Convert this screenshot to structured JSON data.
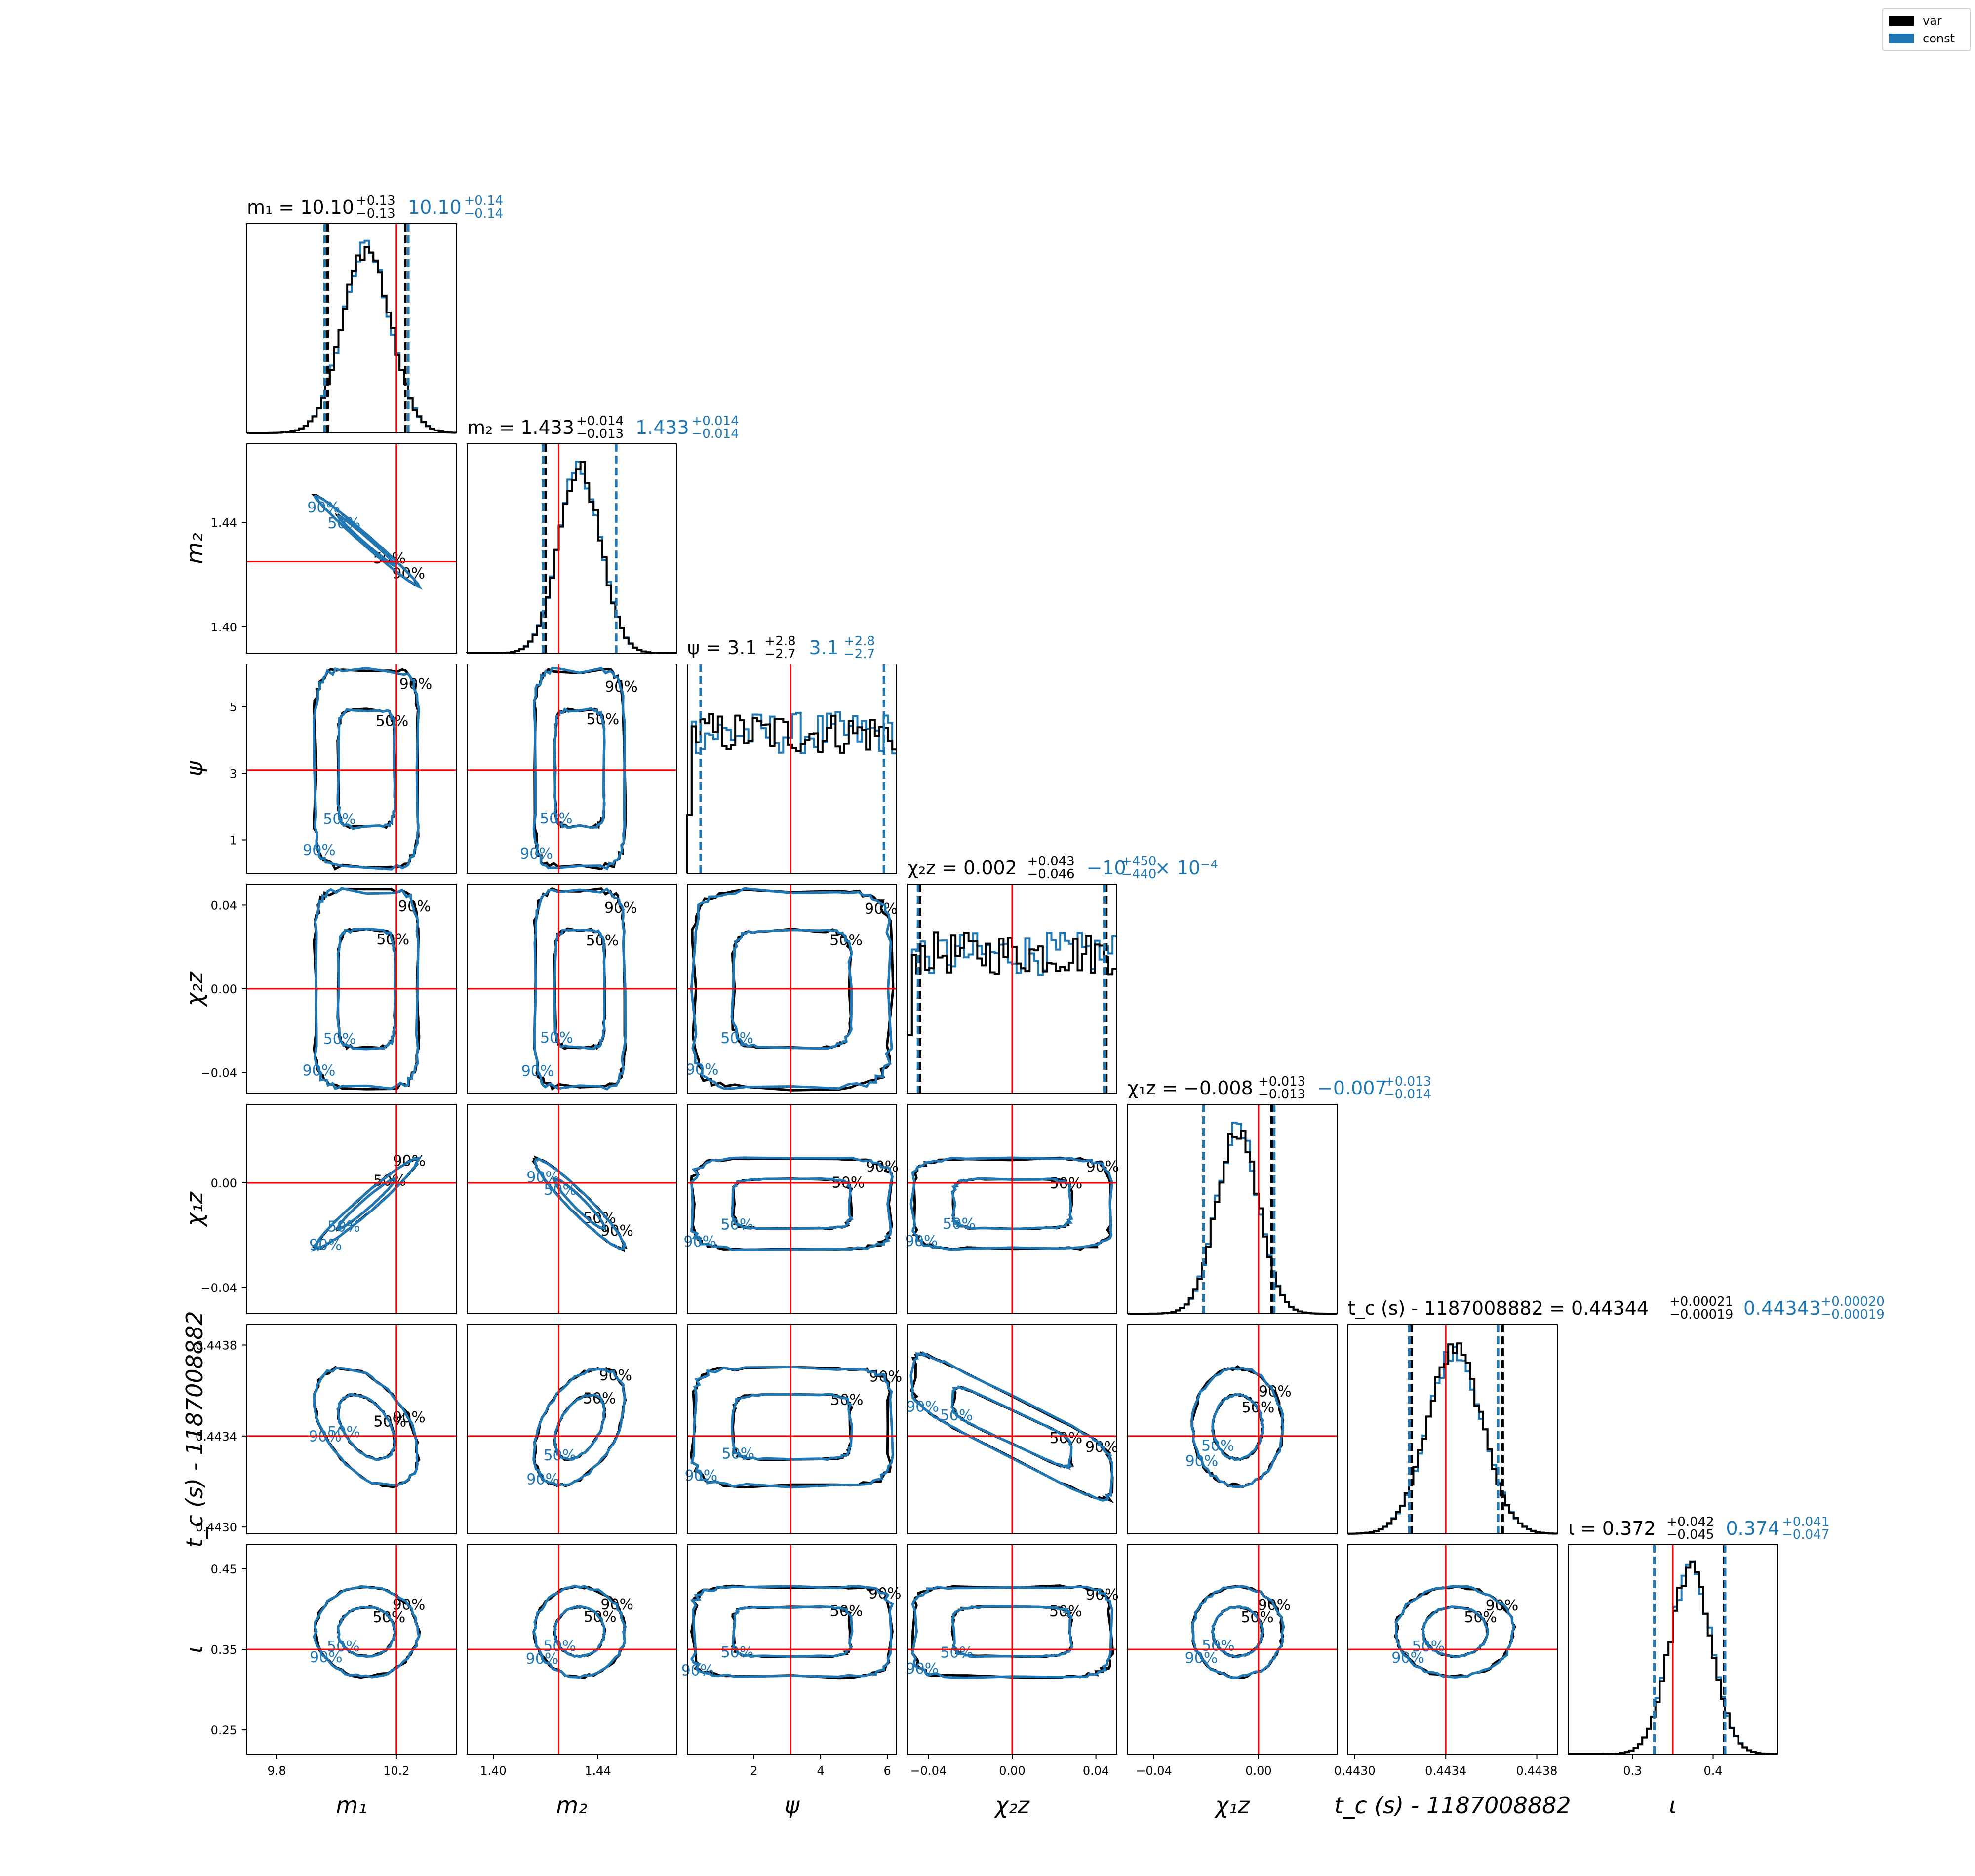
{
  "legend": [
    {
      "label": "var",
      "color": "#000000"
    },
    {
      "label": "const",
      "color": "#1f77b4"
    }
  ],
  "colors": {
    "var": "#000000",
    "const": "#1f77b4",
    "truth": "#ff0000"
  },
  "chart_data": {
    "type": "corner",
    "grid": false,
    "legend_position": "top-right",
    "contour_levels": [
      "50%",
      "90%"
    ],
    "parameters": [
      {
        "key": "m1",
        "label": "m₁",
        "range": [
          9.7,
          10.4
        ],
        "truth": 10.2,
        "ticks": [
          9.8,
          10.2
        ],
        "tick_labels": [
          "9.8",
          "10.2"
        ],
        "title_var": "m₁ = 10.10⁺⁰⋅¹³₋₀.₁₃",
        "title_var_main": "m₁ = 10.10",
        "title_var_up": "+0.13",
        "title_var_dn": "−0.13",
        "title_const_main": "10.10",
        "title_const_up": "+0.14",
        "title_const_dn": "−0.14",
        "median": 10.1,
        "lo_var": 9.97,
        "hi_var": 10.23,
        "lo_const": 9.96,
        "hi_const": 10.24,
        "mu": 10.1,
        "sigma": 0.08
      },
      {
        "key": "m2",
        "label": "m₂",
        "range": [
          1.39,
          1.47
        ],
        "truth": 1.425,
        "ticks": [
          1.4,
          1.44
        ],
        "tick_labels": [
          "1.40",
          "1.44"
        ],
        "title_var_main": "m₂ = 1.433",
        "title_var_up": "+0.014",
        "title_var_dn": "−0.013",
        "title_const_main": "1.433",
        "title_const_up": "+0.014",
        "title_const_dn": "−0.014",
        "median": 1.433,
        "lo_var": 1.42,
        "hi_var": 1.447,
        "lo_const": 1.419,
        "hi_const": 1.447,
        "mu": 1.433,
        "sigma": 0.008
      },
      {
        "key": "psi",
        "label": "ψ",
        "range": [
          0.0,
          6.28
        ],
        "truth": 3.1,
        "ticks": [
          2,
          4,
          6
        ],
        "tick_labels": [
          "2",
          "4",
          "6"
        ],
        "yticks": [
          1,
          3,
          5
        ],
        "ytick_labels": [
          "1",
          "3",
          "5"
        ],
        "title_var_main": "ψ = 3.1",
        "title_var_up": "+2.8",
        "title_var_dn": "−2.7",
        "title_const_main": "3.1",
        "title_const_up": "+2.8",
        "title_const_dn": "−2.7",
        "median": 3.1,
        "lo_var": 0.4,
        "hi_var": 5.9,
        "lo_const": 0.4,
        "hi_const": 5.9,
        "mu": 3.1,
        "sigma": 0,
        "uniform": true
      },
      {
        "key": "chi2z",
        "label": "χ₂z",
        "range": [
          -0.05,
          0.05
        ],
        "truth": 0.0,
        "ticks": [
          -0.04,
          0.0,
          0.04
        ],
        "tick_labels": [
          "−0.04",
          "0.00",
          "0.04"
        ],
        "title_var_main": "χ₂z = 0.002",
        "title_var_up": "+0.043",
        "title_var_dn": "−0.046",
        "title_const_main": "−10",
        "title_const_up": "+450",
        "title_const_dn": "−440",
        "title_const_suffix": "× 10⁻⁴",
        "median": 0.002,
        "lo_var": -0.044,
        "hi_var": 0.045,
        "lo_const": -0.045,
        "hi_const": 0.044,
        "mu": 0.0,
        "sigma": 0,
        "uniform": true
      },
      {
        "key": "chi1z",
        "label": "χ₁z",
        "range": [
          -0.05,
          0.03
        ],
        "truth": 0.0,
        "ticks": [
          -0.04,
          0.0
        ],
        "tick_labels": [
          "−0.04",
          "0.00"
        ],
        "title_var_main": "χ₁z = −0.008",
        "title_var_up": "+0.013",
        "title_var_dn": "−0.013",
        "title_const_main": "−0.007",
        "title_const_up": "+0.013",
        "title_const_dn": "−0.014",
        "median": -0.008,
        "lo_var": -0.021,
        "hi_var": 0.005,
        "lo_const": -0.021,
        "hi_const": 0.006,
        "mu": -0.008,
        "sigma": 0.008
      },
      {
        "key": "tc",
        "label": "t_c (s) - 1187008882",
        "range": [
          0.44297,
          0.44389
        ],
        "truth": 0.4434,
        "ticks": [
          0.443,
          0.4434,
          0.4438
        ],
        "tick_labels": [
          "0.4430",
          "0.4434",
          "0.4438"
        ],
        "title_var_main": "t_c (s) - 1187008882 = 0.44344",
        "title_var_up": "+0.00021",
        "title_var_dn": "−0.00019",
        "title_const_main": "0.44343",
        "title_const_up": "+0.00020",
        "title_const_dn": "−0.00019",
        "median": 0.44344,
        "lo_var": 0.44325,
        "hi_var": 0.44365,
        "lo_const": 0.44324,
        "hi_const": 0.44363,
        "mu": 0.44344,
        "sigma": 0.00012
      },
      {
        "key": "iota",
        "label": "ι",
        "range": [
          0.22,
          0.48
        ],
        "truth": 0.35,
        "ticks": [
          0.3,
          0.4
        ],
        "tick_labels": [
          "0.3",
          "0.4"
        ],
        "yticks": [
          0.25,
          0.35,
          0.45
        ],
        "ytick_labels": [
          "0.25",
          "0.35",
          "0.45"
        ],
        "title_var_main": "ι = 0.372",
        "title_var_up": "+0.042",
        "title_var_dn": "−0.045",
        "title_const_main": "0.374",
        "title_const_up": "+0.041",
        "title_const_dn": "−0.047",
        "median": 0.372,
        "lo_var": 0.327,
        "hi_var": 0.414,
        "lo_const": 0.327,
        "hi_const": 0.415,
        "mu": 0.372,
        "sigma": 0.026
      }
    ],
    "texts": {
      "m1_label": "m",
      "tick_fmt_note": ""
    }
  }
}
